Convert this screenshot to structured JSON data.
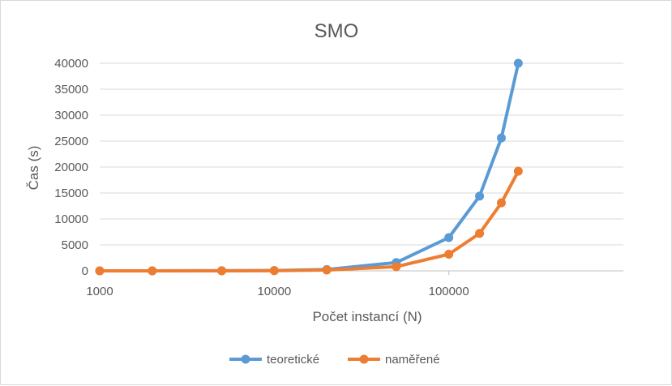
{
  "chart_data": {
    "type": "line",
    "title": "SMO",
    "xlabel": "Počet instancí (N)",
    "ylabel": "Čas (s)",
    "x_scale": "log",
    "xlim": [
      1000,
      1000000
    ],
    "x_ticks": [
      "1000",
      "10000",
      "100000"
    ],
    "x_tick_values": [
      1000,
      10000,
      100000
    ],
    "ylim": [
      0,
      40000
    ],
    "y_ticks": [
      "0",
      "5000",
      "10000",
      "15000",
      "20000",
      "25000",
      "30000",
      "35000",
      "40000"
    ],
    "y_tick_values": [
      0,
      5000,
      10000,
      15000,
      20000,
      25000,
      30000,
      35000,
      40000
    ],
    "grid": true,
    "legend_position": "bottom",
    "series": [
      {
        "name": "teoretické",
        "color": "#5b9bd5",
        "points": [
          [
            1000,
            0
          ],
          [
            2000,
            3
          ],
          [
            5000,
            16
          ],
          [
            10000,
            64
          ],
          [
            20000,
            256
          ],
          [
            50000,
            1600
          ],
          [
            100000,
            6400
          ],
          [
            150000,
            14400
          ],
          [
            200000,
            25600
          ],
          [
            250000,
            40000
          ]
        ]
      },
      {
        "name": "naměřené",
        "color": "#ed7d31",
        "points": [
          [
            1000,
            0
          ],
          [
            2000,
            2
          ],
          [
            5000,
            10
          ],
          [
            10000,
            40
          ],
          [
            20000,
            150
          ],
          [
            50000,
            800
          ],
          [
            100000,
            3200
          ],
          [
            150000,
            7200
          ],
          [
            200000,
            13100
          ],
          [
            250000,
            19200
          ]
        ]
      }
    ]
  }
}
